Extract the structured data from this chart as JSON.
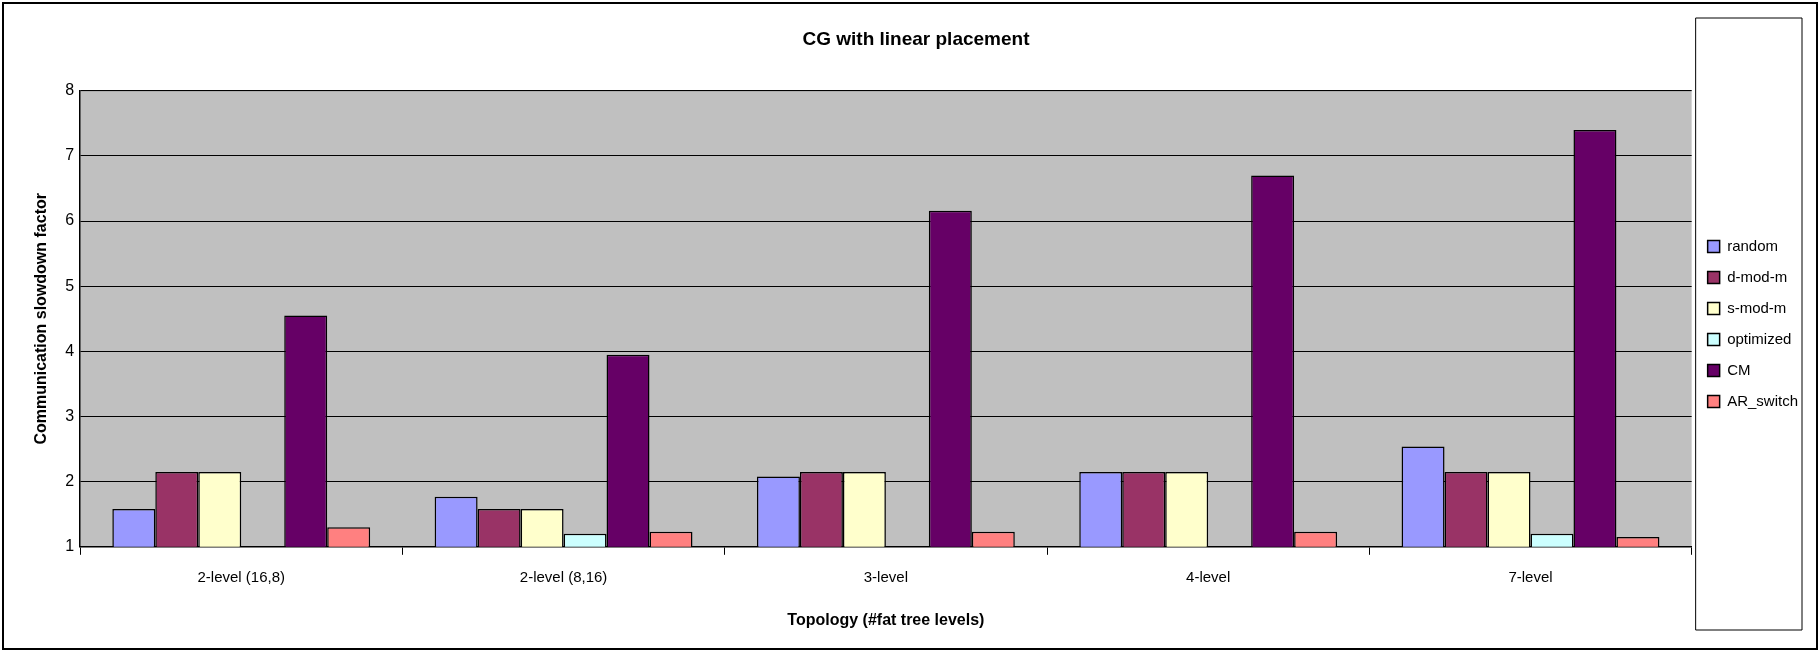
{
  "chart_data": {
    "type": "bar",
    "title": "CG with linear placement",
    "xlabel": "Topology (#fat tree levels)",
    "ylabel": "Communication slowdown factor",
    "categories": [
      "2-level (16,8)",
      "2-level (8,16)",
      "3-level",
      "4-level",
      "7-level"
    ],
    "series": [
      {
        "name": "random",
        "color": "#9999ff",
        "values": [
          1.58,
          1.77,
          2.08,
          2.15,
          2.54
        ]
      },
      {
        "name": "d-mod-m",
        "color": "#993366",
        "values": [
          2.15,
          1.58,
          2.15,
          2.15,
          2.15
        ]
      },
      {
        "name": "s-mod-m",
        "color": "#ffffcc",
        "values": [
          2.15,
          1.58,
          2.15,
          2.15,
          2.15
        ]
      },
      {
        "name": "optimized",
        "color": "#ccffff",
        "values": [
          null,
          1.2,
          null,
          null,
          1.2
        ]
      },
      {
        "name": "CM",
        "color": "#660066",
        "values": [
          4.55,
          3.95,
          6.16,
          6.7,
          7.4
        ]
      },
      {
        "name": "AR_switch",
        "color": "#ff8080",
        "values": [
          1.3,
          1.23,
          1.23,
          1.23,
          1.15
        ]
      }
    ],
    "ylim": [
      1,
      8
    ],
    "yticks": [
      1,
      2,
      3,
      4,
      5,
      6,
      7,
      8
    ],
    "grid": "y",
    "legend": "right"
  }
}
